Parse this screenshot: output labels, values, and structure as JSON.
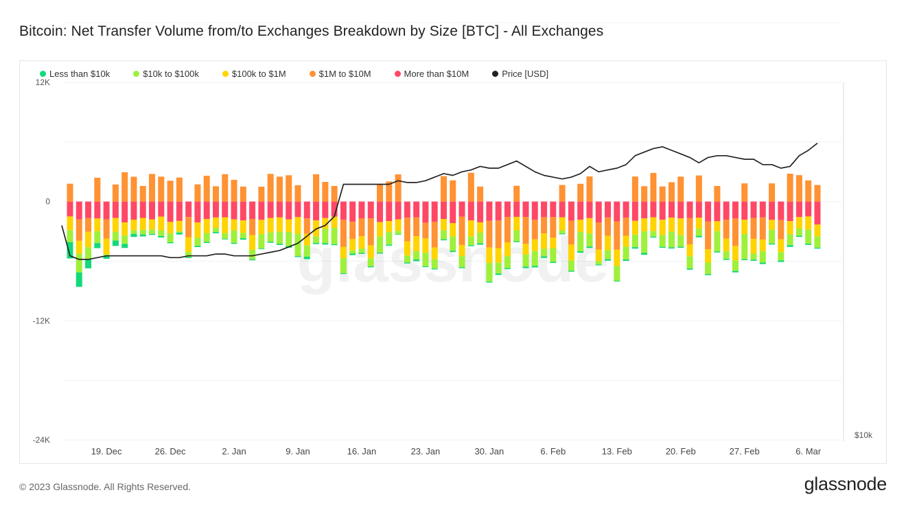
{
  "title": "Bitcoin: Net Transfer Volume from/to Exchanges Breakdown by Size [BTC] - All Exchanges",
  "footer": "© 2023 Glassnode. All Rights Reserved.",
  "brand": "glassnode",
  "watermark": "glassnode",
  "legend": [
    {
      "label": "Less than $10k",
      "color": "#14d97a"
    },
    {
      "label": "$10k to $100k",
      "color": "#9ef03b"
    },
    {
      "label": "$100k to $1M",
      "color": "#ffd400"
    },
    {
      "label": "$1M to $10M",
      "color": "#ff9233"
    },
    {
      "label": "More than $10M",
      "color": "#ff4866"
    },
    {
      "label": "Price [USD]",
      "color": "#222222"
    }
  ],
  "chart_data": {
    "type": "bar",
    "stacked": true,
    "ylim": [
      -24000,
      12000
    ],
    "yticks": [
      {
        "value": 12000,
        "label": "12K"
      },
      {
        "value": 0,
        "label": "0"
      },
      {
        "value": -12000,
        "label": "-12K"
      },
      {
        "value": -24000,
        "label": "-24K"
      }
    ],
    "y2_label": "$10k",
    "xticks": [
      {
        "index": 4,
        "label": "19. Dec"
      },
      {
        "index": 11,
        "label": "26. Dec"
      },
      {
        "index": 18,
        "label": "2. Jan"
      },
      {
        "index": 25,
        "label": "9. Jan"
      },
      {
        "index": 32,
        "label": "16. Jan"
      },
      {
        "index": 39,
        "label": "23. Jan"
      },
      {
        "index": 46,
        "label": "30. Jan"
      },
      {
        "index": 53,
        "label": "6. Feb"
      },
      {
        "index": 60,
        "label": "13. Feb"
      },
      {
        "index": 67,
        "label": "20. Feb"
      },
      {
        "index": 74,
        "label": "27. Feb"
      },
      {
        "index": 81,
        "label": "6. Mar"
      }
    ],
    "series": [
      {
        "name": "Less than $10k",
        "values": [
          -1650,
          -1450,
          -910,
          -510,
          -300,
          -550,
          -410,
          -310,
          -200,
          -110,
          -150,
          -100,
          -200,
          -100,
          -130,
          -110,
          -130,
          -70,
          -100,
          -150,
          -100,
          -60,
          -110,
          -130,
          -150,
          -100,
          -250,
          -110,
          -150,
          -100,
          -80,
          -150,
          -100,
          -100,
          -100,
          -110,
          -50,
          -100,
          -180,
          -90,
          -90,
          -100,
          -120,
          -100,
          -100,
          -150,
          -100,
          -160,
          -100,
          -100,
          -150,
          -160,
          -160,
          -110,
          -80,
          -100,
          -150,
          -150,
          -80,
          -150,
          -80,
          -150,
          -150,
          -200,
          -100,
          -100,
          -120,
          -100,
          -120,
          -150,
          -110,
          -100,
          -110,
          -150,
          -100,
          -120,
          -150,
          -110,
          -150,
          -180,
          -120,
          -120,
          -100
        ]
      },
      {
        "name": "$10k to $100k",
        "values": [
          -1200,
          -1850,
          -1200,
          -1200,
          -150,
          -870,
          -840,
          -350,
          -460,
          -450,
          -550,
          -890,
          -130,
          -500,
          -800,
          -890,
          -400,
          -560,
          -1240,
          -530,
          -950,
          -1450,
          -930,
          -1200,
          -1440,
          -2250,
          -1120,
          -650,
          -1440,
          -1640,
          -1500,
          -330,
          -440,
          -810,
          -1620,
          -1260,
          -340,
          -700,
          -840,
          -1350,
          -940,
          -900,
          -1440,
          -1120,
          -860,
          -1070,
          -1870,
          -1070,
          -1200,
          -1100,
          -1200,
          -1480,
          -760,
          -1350,
          -330,
          -1020,
          -1930,
          -1310,
          -350,
          -900,
          -1490,
          -1280,
          -1260,
          -2150,
          -560,
          -1170,
          -1580,
          -1160,
          -1230,
          -710,
          -1160,
          -2050,
          -760,
          -1040,
          -2530,
          -600,
          -1150,
          -1380,
          -840,
          -1110,
          -720,
          -1400,
          -1140
        ]
      },
      {
        "name": "$100k to $1M",
        "values": [
          -1380,
          -1330,
          -1560,
          -1280,
          -1580,
          -1400,
          -1320,
          -1080,
          -1200,
          -1000,
          -1400,
          -1160,
          -1040,
          -1500,
          -1550,
          -1420,
          -1060,
          -1600,
          -1120,
          -1260,
          -1480,
          -1440,
          -1460,
          -1460,
          -1260,
          -1680,
          -1190,
          -1620,
          -1090,
          -1140,
          -1140,
          -1130,
          -1240,
          -1310,
          -1450,
          -1110,
          -1150,
          -1420,
          -1500,
          -1450,
          -1180,
          -1150,
          -1350,
          -1120,
          -1630,
          -1040,
          -1560,
          -1470,
          -1400,
          -1350,
          -1090,
          -1180,
          -1540,
          -1080,
          -1310,
          -1610,
          -1250,
          -1540,
          -1150,
          -1460,
          -1630,
          -1100,
          -1390,
          -1310,
          -1380,
          -1560,
          -1420,
          -1690,
          -1200,
          -1120,
          -1350,
          -1000,
          -1280,
          -1470,
          -1440,
          -1490,
          -1170,
          -1000,
          -1280,
          -1310,
          -1160,
          -1340,
          -1190
        ]
      },
      {
        "name": "$1M to $10M",
        "values": [
          1800,
          -2150,
          -1400,
          2400,
          -1950,
          1720,
          2950,
          2500,
          1570,
          2780,
          2510,
          2100,
          2420,
          -2020,
          1730,
          2600,
          1540,
          2760,
          2190,
          1510,
          -1630,
          1500,
          2790,
          2510,
          2650,
          1650,
          -1540,
          2750,
          1980,
          1570,
          -2730,
          -1740,
          -1810,
          -2700,
          1740,
          2030,
          2740,
          -2390,
          -1910,
          -1570,
          -2590,
          2560,
          2140,
          -2860,
          2900,
          1510,
          -2690,
          -2780,
          -2550,
          1590,
          -2700,
          -1970,
          -1640,
          -2080,
          1670,
          -2410,
          1790,
          2530,
          -2730,
          -1840,
          -2860,
          -1820,
          2520,
          1550,
          2880,
          1520,
          1950,
          2510,
          -2660,
          2630,
          -2780,
          1570,
          -1900,
          -2770,
          1830,
          -2100,
          -2220,
          1830,
          -1940,
          2810,
          2660,
          2130,
          1670
        ]
      },
      {
        "name": "More than $10M",
        "values": [
          -1500,
          -1800,
          -1650,
          -1700,
          -1780,
          -1650,
          -2100,
          -1820,
          -1650,
          -1800,
          -1520,
          -2050,
          -1950,
          -1560,
          -2100,
          -1750,
          -1600,
          -1580,
          -1800,
          -1900,
          -1750,
          -1840,
          -1650,
          -1580,
          -1800,
          -1560,
          -1700,
          -1900,
          -1650,
          -1510,
          -1840,
          -2040,
          -1680,
          -1700,
          -2070,
          -1960,
          -1800,
          -1620,
          -1580,
          -2140,
          -2030,
          -1750,
          -2170,
          -1510,
          -1900,
          -2090,
          -1940,
          -1910,
          -1550,
          -1540,
          -1560,
          -1840,
          -1570,
          -1560,
          -1580,
          -1920,
          -1820,
          -1670,
          -2100,
          -1600,
          -1990,
          -1620,
          -1940,
          -1700,
          -1590,
          -1830,
          -1610,
          -1700,
          -1650,
          -1620,
          -2010,
          -1980,
          -1830,
          -1700,
          -1830,
          -1650,
          -1600,
          -1840,
          -1870,
          -1970,
          -1560,
          -1500,
          -2310
        ]
      },
      {
        "name": "Price [USD]",
        "axis": "y2",
        "values": [
          1.68,
          1.66,
          1.66,
          1.67,
          1.68,
          1.68,
          1.68,
          1.68,
          1.68,
          1.68,
          1.68,
          1.67,
          1.67,
          1.68,
          1.68,
          1.68,
          1.69,
          1.69,
          1.68,
          1.68,
          1.68,
          1.69,
          1.7,
          1.71,
          1.73,
          1.75,
          1.79,
          1.83,
          1.85,
          1.9,
          2.08,
          2.08,
          2.08,
          2.08,
          2.08,
          2.08,
          2.1,
          2.09,
          2.09,
          2.1,
          2.12,
          2.14,
          2.13,
          2.15,
          2.16,
          2.18,
          2.17,
          2.17,
          2.19,
          2.21,
          2.18,
          2.15,
          2.13,
          2.12,
          2.11,
          2.12,
          2.14,
          2.18,
          2.15,
          2.16,
          2.17,
          2.19,
          2.24,
          2.26,
          2.28,
          2.29,
          2.27,
          2.25,
          2.23,
          2.2,
          2.23,
          2.24,
          2.24,
          2.23,
          2.22,
          2.22,
          2.19,
          2.19,
          2.17,
          2.18,
          2.24,
          2.27,
          2.31
        ]
      }
    ]
  }
}
